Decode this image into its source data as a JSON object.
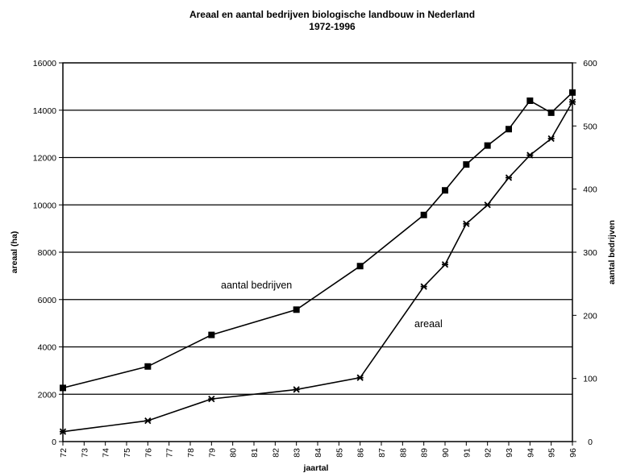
{
  "chart_data": {
    "type": "line",
    "title_line1": "Areaal en aantal bedrijven biologische landbouw in Nederland",
    "title_line2": "1972-1996",
    "xlabel": "jaartal",
    "ylabel_left": "areaal (ha)",
    "ylabel_right": "aantal bedrijven",
    "categories": [
      "72",
      "73",
      "74",
      "75",
      "76",
      "77",
      "78",
      "79",
      "80",
      "81",
      "82",
      "83",
      "84",
      "85",
      "86",
      "87",
      "88",
      "89",
      "90",
      "91",
      "92",
      "93",
      "94",
      "95",
      "96"
    ],
    "ylim_left": [
      0,
      16000
    ],
    "yticks_left": [
      0,
      2000,
      4000,
      6000,
      8000,
      10000,
      12000,
      14000,
      16000
    ],
    "ylim_right": [
      0,
      600
    ],
    "yticks_right": [
      0,
      100,
      200,
      300,
      400,
      500,
      600
    ],
    "grid": true,
    "series": [
      {
        "name": "aantal bedrijven",
        "axis": "right",
        "marker": "square",
        "points": [
          {
            "x": "72",
            "y": 85
          },
          {
            "x": "76",
            "y": 119
          },
          {
            "x": "79",
            "y": 169
          },
          {
            "x": "83",
            "y": 209
          },
          {
            "x": "86",
            "y": 278
          },
          {
            "x": "89",
            "y": 359
          },
          {
            "x": "90",
            "y": 398
          },
          {
            "x": "91",
            "y": 439
          },
          {
            "x": "92",
            "y": 469
          },
          {
            "x": "93",
            "y": 495
          },
          {
            "x": "94",
            "y": 540
          },
          {
            "x": "95",
            "y": 521
          },
          {
            "x": "96",
            "y": 553
          }
        ]
      },
      {
        "name": "areaal",
        "axis": "left",
        "marker": "star",
        "points": [
          {
            "x": "72",
            "y": 420
          },
          {
            "x": "76",
            "y": 880
          },
          {
            "x": "79",
            "y": 1800
          },
          {
            "x": "83",
            "y": 2200
          },
          {
            "x": "86",
            "y": 2700
          },
          {
            "x": "89",
            "y": 6550
          },
          {
            "x": "90",
            "y": 7480
          },
          {
            "x": "91",
            "y": 9200
          },
          {
            "x": "92",
            "y": 10000
          },
          {
            "x": "93",
            "y": 11150
          },
          {
            "x": "94",
            "y": 12100
          },
          {
            "x": "95",
            "y": 12800
          },
          {
            "x": "96",
            "y": 14350
          }
        ]
      }
    ]
  }
}
